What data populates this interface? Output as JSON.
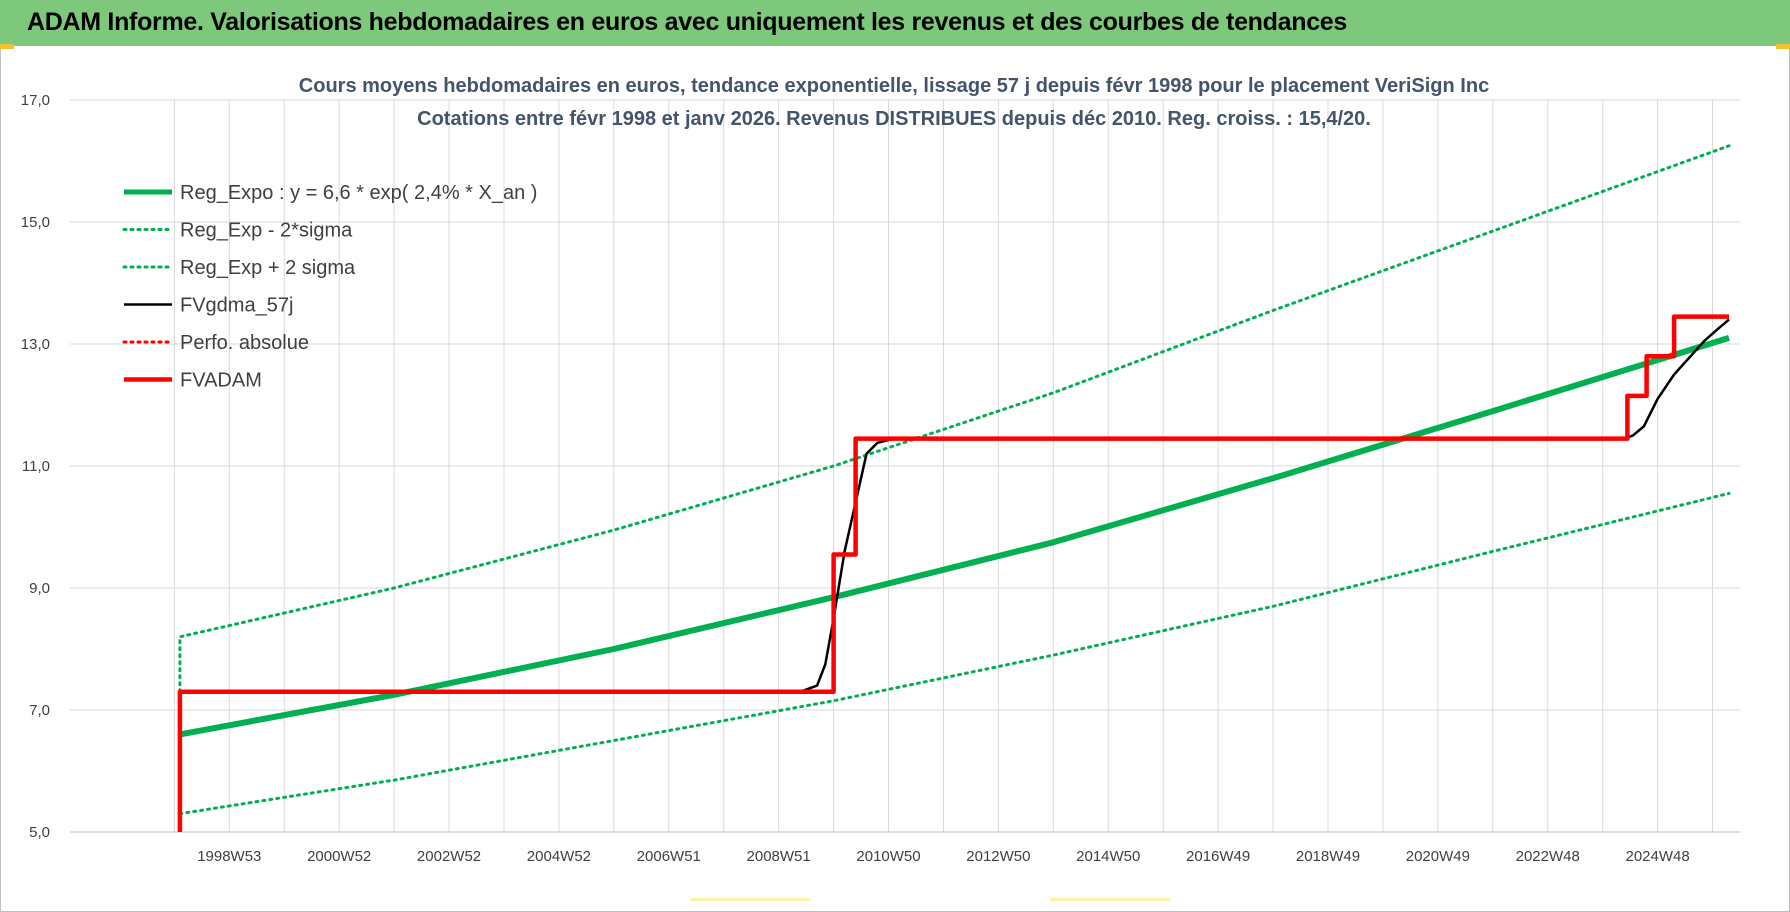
{
  "header": {
    "title": "ADAM Informe. Valorisations hebdomadaires en euros avec uniquement les revenus et des courbes de tendances"
  },
  "colors": {
    "banner": "#7dc87a",
    "trend_green": "#00b050",
    "red": "#ff0000",
    "black": "#000000",
    "grid": "#d9d9d9"
  },
  "chart_data": {
    "type": "line",
    "title_lines": [
      "Cours moyens hebdomadaires en euros, tendance exponentielle, lissage 57 j depuis févr 1998 pour le placement VeriSign Inc",
      "Cotations entre févr 1998 et janv 2026. Revenus DISTRIBUES depuis déc 2010. Reg. croiss. : 15,4/20."
    ],
    "xlabel": "",
    "ylabel": "",
    "ylim": [
      5.0,
      17.0
    ],
    "xlim": [
      1996.1,
      2026.5
    ],
    "yticks": [
      "5,0",
      "7,0",
      "9,0",
      "11,0",
      "13,0",
      "15,0",
      "17,0"
    ],
    "yticks_values": [
      5,
      7,
      9,
      11,
      13,
      15,
      17
    ],
    "xtick_labels": [
      "1998W53",
      "2000W52",
      "2002W52",
      "2004W52",
      "2006W51",
      "2008W51",
      "2010W50",
      "2012W50",
      "2014W50",
      "2016W49",
      "2018W49",
      "2020W49",
      "2022W48",
      "2024W48"
    ],
    "xtick_positions": [
      1999.0,
      2001.0,
      2003.0,
      2005.0,
      2007.0,
      2009.0,
      2011.0,
      2013.0,
      2015.0,
      2017.0,
      2019.0,
      2021.0,
      2023.0,
      2025.0
    ],
    "grid": true,
    "legend_position": "top-left",
    "series": [
      {
        "name": "Reg_Expo : y = 6,6 * exp( 2,4% *  X_an )",
        "style": "solid-thick",
        "color": "#00b050",
        "x": [
          1998.1,
          2002.0,
          2006.0,
          2010.0,
          2014.0,
          2018.0,
          2022.0,
          2026.3
        ],
        "y": [
          6.6,
          7.25,
          8.0,
          8.85,
          9.75,
          10.8,
          11.9,
          13.1
        ]
      },
      {
        "name": "Reg_Exp - 2*sigma",
        "style": "dotted",
        "color": "#00b050",
        "x": [
          1998.1,
          2002.0,
          2006.0,
          2010.0,
          2014.0,
          2018.0,
          2022.0,
          2026.3
        ],
        "y": [
          5.3,
          5.85,
          6.5,
          7.15,
          7.9,
          8.7,
          9.6,
          10.55
        ]
      },
      {
        "name": "Reg_Exp + 2 sigma",
        "style": "dotted",
        "color": "#00b050",
        "x": [
          1998.1,
          1998.1,
          2002.0,
          2006.0,
          2010.0,
          2014.0,
          2018.0,
          2022.0,
          2026.3
        ],
        "y": [
          7.3,
          8.2,
          9.0,
          9.95,
          11.0,
          12.2,
          13.55,
          14.85,
          16.25
        ]
      },
      {
        "name": "FVgdma_57j",
        "style": "solid",
        "color": "#000000",
        "x": [
          2009.4,
          2009.7,
          2009.85,
          2010.0,
          2010.2,
          2010.45,
          2010.6,
          2010.8,
          2011.1,
          2024.4,
          2024.55,
          2024.75,
          2025.0,
          2025.3,
          2025.6,
          2025.85,
          2026.1,
          2026.3
        ],
        "y": [
          7.3,
          7.4,
          7.75,
          8.5,
          9.6,
          10.6,
          11.2,
          11.38,
          11.45,
          11.45,
          11.5,
          11.65,
          12.1,
          12.5,
          12.8,
          13.05,
          13.25,
          13.4
        ]
      },
      {
        "name": "Perfo. absolue",
        "style": "dotted",
        "color": "#ff0000",
        "x": [],
        "y": []
      },
      {
        "name": "FVADAM",
        "style": "step-thick",
        "color": "#ff0000",
        "x": [
          1998.1,
          1998.1,
          2010.0,
          2010.0,
          2010.4,
          2010.4,
          2024.45,
          2024.45,
          2024.8,
          2024.8,
          2025.3,
          2025.3,
          2025.9,
          2025.9,
          2026.3
        ],
        "y": [
          5.0,
          7.3,
          7.3,
          9.55,
          9.55,
          11.45,
          11.45,
          12.15,
          12.15,
          12.8,
          12.8,
          13.45,
          13.45,
          13.45,
          13.45
        ]
      }
    ]
  }
}
